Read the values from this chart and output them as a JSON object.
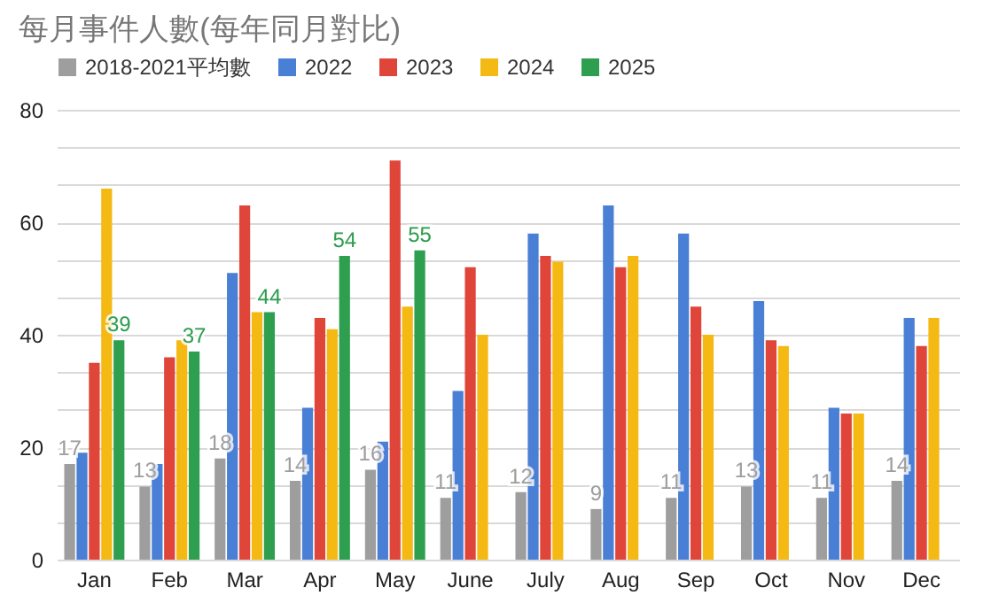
{
  "chart_data": {
    "type": "bar",
    "title": "每月事件人數(每年同月對比)",
    "categories": [
      "Jan",
      "Feb",
      "Mar",
      "Apr",
      "May",
      "June",
      "July",
      "Aug",
      "Sep",
      "Oct",
      "Nov",
      "Dec"
    ],
    "series": [
      {
        "name": "2018-2021平均數",
        "color": "#9e9e9e",
        "values": [
          17,
          13,
          18,
          14,
          16,
          11,
          12,
          9,
          11,
          13,
          11,
          14
        ],
        "value_labels": [
          "17",
          "13",
          "18",
          "14",
          "16",
          "11",
          "12",
          "9",
          "11",
          "13",
          "11",
          "14"
        ]
      },
      {
        "name": "2022",
        "color": "#4a7fd6",
        "values": [
          19,
          17,
          51,
          27,
          21,
          30,
          58,
          63,
          58,
          46,
          27,
          43
        ]
      },
      {
        "name": "2023",
        "color": "#e0453a",
        "values": [
          35,
          36,
          63,
          43,
          71,
          52,
          54,
          52,
          45,
          39,
          26,
          38
        ]
      },
      {
        "name": "2024",
        "color": "#f5b914",
        "values": [
          66,
          39,
          44,
          41,
          45,
          40,
          53,
          54,
          40,
          38,
          26,
          43
        ]
      },
      {
        "name": "2025",
        "color": "#2e9e4f",
        "values": [
          39,
          37,
          44,
          54,
          55,
          null,
          null,
          null,
          null,
          null,
          null,
          null
        ],
        "value_labels": [
          "39",
          "37",
          "44",
          "54",
          "55",
          null,
          null,
          null,
          null,
          null,
          null,
          null
        ]
      }
    ],
    "ylim": [
      0,
      80
    ],
    "yticks": [
      0,
      {
        "value": 6.67,
        "label": null
      },
      {
        "value": 13.33,
        "label": null
      },
      20,
      {
        "value": 26.67,
        "label": null
      },
      {
        "value": 33.33,
        "label": null
      },
      40,
      {
        "value": 46.67,
        "label": null
      },
      {
        "value": 53.33,
        "label": null
      },
      60,
      {
        "value": 66.67,
        "label": null
      },
      {
        "value": 73.33,
        "label": null
      },
      80
    ],
    "grid": true,
    "legend": "top"
  }
}
